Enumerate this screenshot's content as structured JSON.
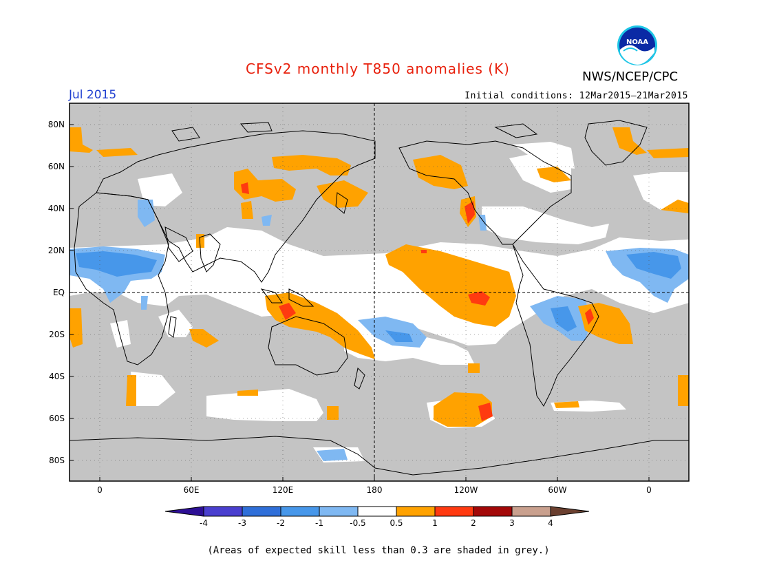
{
  "header": {
    "title": "CFSv2 monthly T850 anomalies (K)",
    "organization": "NWS/NCEP/CPC",
    "logo_text": "NOAA",
    "month": "Jul 2015",
    "initial_conditions": "Initial conditions: 12Mar2015–21Mar2015"
  },
  "map": {
    "lat_labels": [
      "80N",
      "60N",
      "40N",
      "20N",
      "EQ",
      "20S",
      "40S",
      "60S",
      "80S"
    ],
    "lon_labels": [
      "0",
      "60E",
      "120E",
      "180",
      "120W",
      "60W",
      "0"
    ]
  },
  "legend": {
    "labels": [
      "-4",
      "-3",
      "-2",
      "-1",
      "-0.5",
      "0.5",
      "1",
      "2",
      "3",
      "4"
    ],
    "colors": [
      "#2d0f95",
      "#4a3fcf",
      "#2f6fd9",
      "#4797ea",
      "#7fb8f2",
      "#ffffff",
      "#ffa200",
      "#ff3a10",
      "#a30808",
      "#c9a08e",
      "#6b4030"
    ]
  },
  "footnote": "(Areas of expected skill less than 0.3 are shaded in grey.)",
  "colors": {
    "grey_skill": "#c4c4c4",
    "title_red": "#e8200c",
    "month_blue": "#1f3fd0"
  }
}
